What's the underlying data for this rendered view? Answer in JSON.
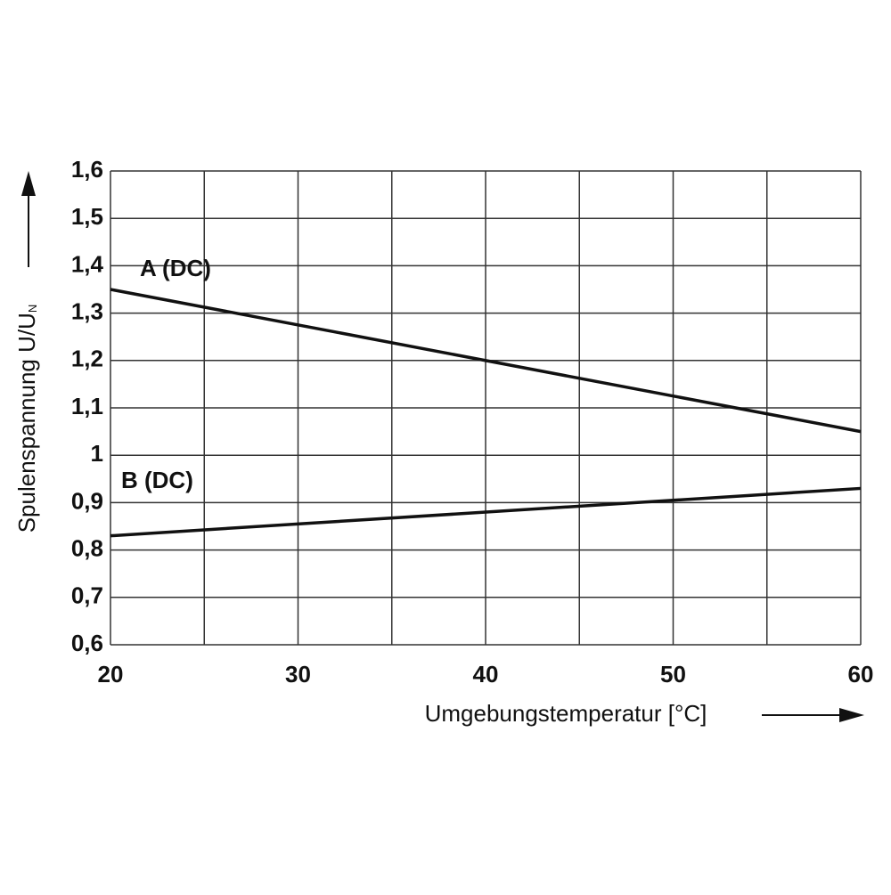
{
  "chart_data": {
    "type": "line",
    "xlabel": "Umgebungstemperatur [°C]",
    "ylabel": "Spulenspannung U/U",
    "ylabel_subscript": "N",
    "x": [
      20,
      60
    ],
    "series": [
      {
        "name": "A (DC)",
        "color": "#111111",
        "values": [
          1.35,
          1.05
        ]
      },
      {
        "name": "B (DC)",
        "color": "#111111",
        "values": [
          0.83,
          0.93
        ]
      }
    ],
    "xlim": [
      20,
      60
    ],
    "xticks": [
      20,
      30,
      40,
      50,
      60
    ],
    "xminorticks": [
      25,
      35,
      45,
      55
    ],
    "ylim": [
      0.6,
      1.6
    ],
    "yticks": [
      {
        "value": 0.6,
        "label": "0,6"
      },
      {
        "value": 0.7,
        "label": "0,7"
      },
      {
        "value": 0.8,
        "label": "0,8"
      },
      {
        "value": 0.9,
        "label": "0,9"
      },
      1,
      {
        "value": 1.1,
        "label": "1,1"
      },
      {
        "value": 1.2,
        "label": "1,2"
      },
      {
        "value": 1.3,
        "label": "1,3"
      },
      {
        "value": 1.4,
        "label": "1,4"
      },
      {
        "value": 1.5,
        "label": "1,5"
      },
      {
        "value": 1.6,
        "label": "1,6"
      }
    ],
    "grid": true
  }
}
